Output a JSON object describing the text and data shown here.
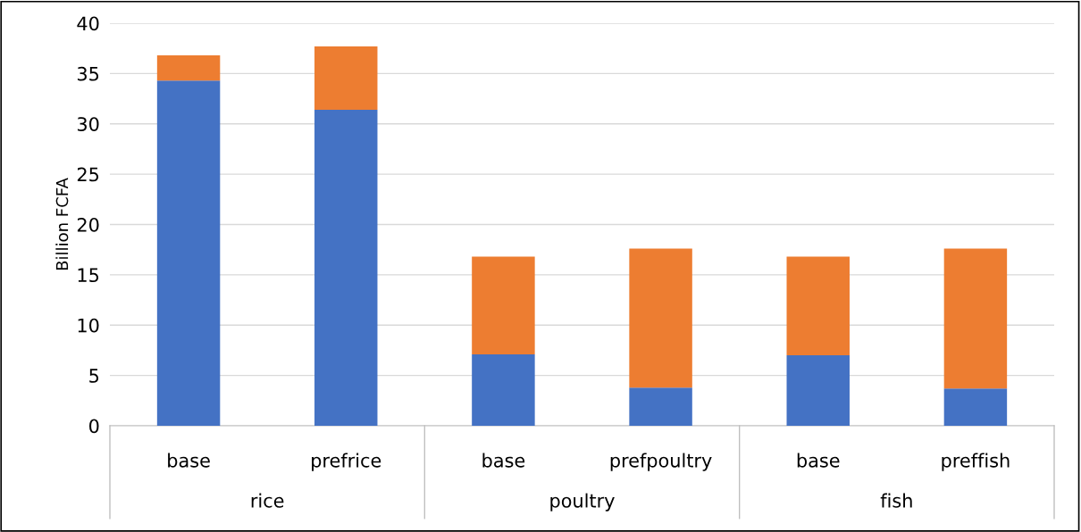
{
  "chart_data": {
    "type": "bar",
    "ylabel": "Billion FCFA",
    "stacked": true,
    "categories": [
      "base",
      "prefrice",
      "base",
      "prefpoultry",
      "base",
      "preffish"
    ],
    "series": [
      {
        "color": "#4472c4",
        "values": [
          34.3,
          31.4,
          7.1,
          3.8,
          7.0,
          3.7
        ]
      },
      {
        "color": "#ed7d31",
        "values": [
          2.5,
          6.3,
          9.7,
          13.8,
          9.8,
          13.9
        ]
      }
    ],
    "annotations": [
      "rice",
      "poultry",
      "fish"
    ],
    "ylim": [
      0,
      40
    ],
    "yticks": [
      0,
      5,
      10,
      15,
      20,
      25,
      30,
      35,
      40
    ],
    "grid": "y"
  }
}
